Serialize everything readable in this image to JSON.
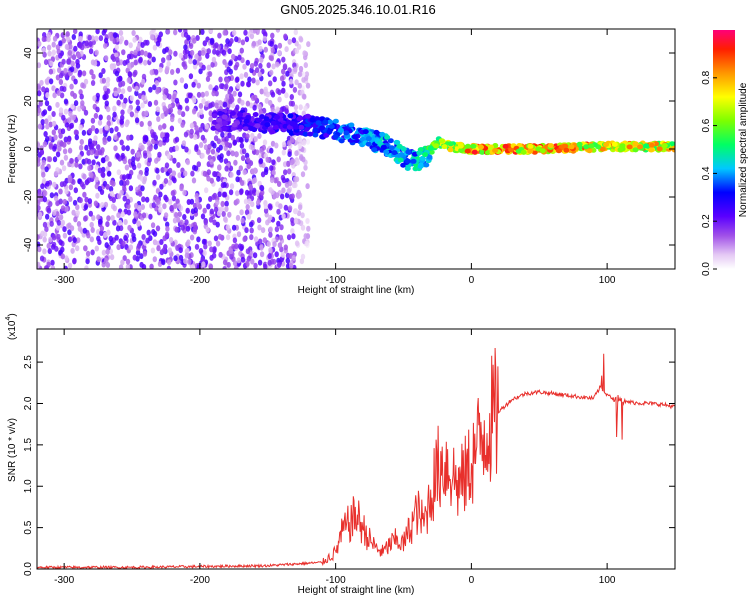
{
  "title": "GN05.2025.346.10.01.R16",
  "chart_data": [
    {
      "type": "heatmap",
      "name": "spectrogram",
      "xlabel": "Height of straight line (km)",
      "ylabel": "Frequency (Hz)",
      "xlim": [
        -320,
        150
      ],
      "ylim": [
        -50,
        50
      ],
      "xticks": [
        -300,
        -200,
        -100,
        0,
        100
      ],
      "yticks": [
        -40,
        -20,
        0,
        20,
        40
      ],
      "xtick_labels": [
        "-300",
        "-200",
        "-100",
        "0",
        "100"
      ],
      "ytick_labels": [
        "-40",
        "-20",
        "0",
        "20",
        "40"
      ],
      "colorbar": {
        "label": "Normalized spectral amplitude",
        "range": [
          0,
          1
        ],
        "ticks": [
          0.0,
          0.2,
          0.4,
          0.6,
          0.8
        ],
        "tick_labels": [
          "0.0",
          "0.2",
          "0.4",
          "0.6",
          "0.8"
        ]
      },
      "ridge": {
        "description_points_height_km": [
          -190,
          -150,
          -120,
          -100,
          -80,
          -60,
          -45,
          -35,
          -25,
          -15,
          0,
          50,
          100,
          150
        ],
        "frequency_hz": [
          12,
          11,
          10,
          8,
          5,
          1,
          -5,
          -4,
          3,
          1,
          0,
          0,
          1,
          1
        ],
        "peak_amplitude": [
          0.25,
          0.3,
          0.35,
          0.4,
          0.45,
          0.5,
          0.5,
          0.55,
          0.7,
          0.8,
          0.95,
          0.95,
          0.9,
          0.85
        ]
      }
    },
    {
      "type": "line",
      "name": "snr",
      "xlabel": "Height of straight line (km)",
      "ylabel": "SNR (10 * v/v)",
      "y_multiplier_label": "(x10",
      "y_multiplier_exp": "4",
      "y_multiplier_close": ")",
      "xlim": [
        -320,
        150
      ],
      "ylim": [
        0,
        2.9
      ],
      "xticks": [
        -300,
        -200,
        -100,
        0,
        100
      ],
      "yticks": [
        0,
        0.5,
        1,
        1.5,
        2,
        2.5
      ],
      "xtick_labels": [
        "-300",
        "-200",
        "-100",
        "0",
        "100"
      ],
      "ytick_labels": [
        "0.0",
        "0.5",
        "1.0",
        "1.5",
        "2.0",
        "2.5"
      ],
      "color": "#e8302c",
      "series": [
        {
          "name": "SNR",
          "x": [
            -320,
            -250,
            -200,
            -150,
            -110,
            -100,
            -95,
            -90,
            -85,
            -80,
            -75,
            -70,
            -65,
            -60,
            -55,
            -50,
            -45,
            -40,
            -35,
            -30,
            -25,
            -20,
            -15,
            -10,
            -5,
            0,
            5,
            10,
            20,
            30,
            40,
            50,
            60,
            70,
            80,
            90,
            95,
            100,
            105,
            110,
            115,
            120,
            130,
            140,
            150
          ],
          "y": [
            0.02,
            0.02,
            0.03,
            0.04,
            0.08,
            0.2,
            0.45,
            0.55,
            0.65,
            0.5,
            0.35,
            0.25,
            0.2,
            0.3,
            0.35,
            0.3,
            0.5,
            0.7,
            0.55,
            0.9,
            1.2,
            1.3,
            1.2,
            1.0,
            1.1,
            1.3,
            1.5,
            1.7,
            1.9,
            2.05,
            2.12,
            2.14,
            2.12,
            2.1,
            2.08,
            2.06,
            2.2,
            2.1,
            2.05,
            2.05,
            2.02,
            2.01,
            2.0,
            1.99,
            1.96
          ]
        }
      ]
    }
  ]
}
